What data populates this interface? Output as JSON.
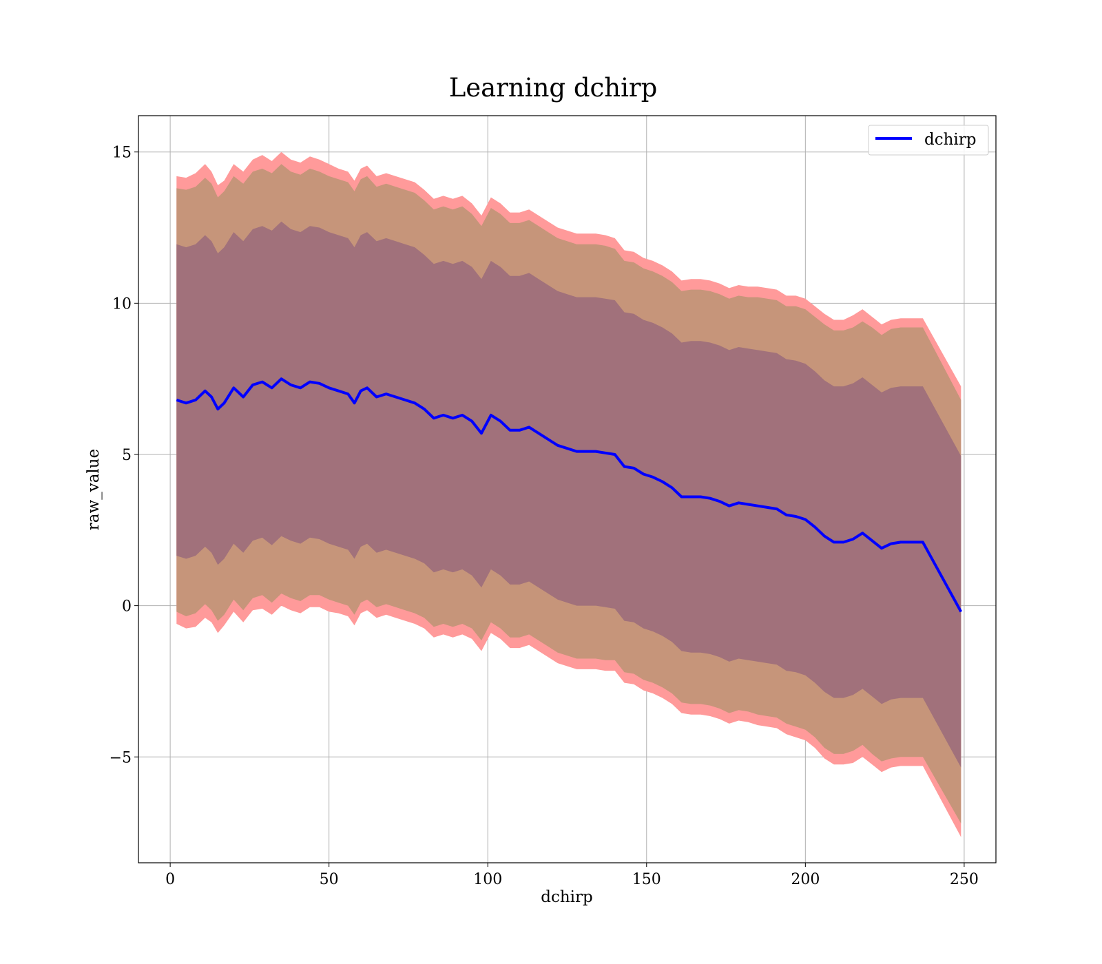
{
  "chart_data": {
    "type": "line",
    "title": "Learning dchirp",
    "xlabel": "dchirp",
    "ylabel": "raw_value",
    "xlim": [
      -10,
      260
    ],
    "ylim": [
      -8.5,
      16.2
    ],
    "x_ticks": [
      0,
      50,
      100,
      150,
      200,
      250
    ],
    "x_tick_labels": [
      "0",
      "50",
      "100",
      "150",
      "200",
      "250"
    ],
    "y_ticks": [
      -5,
      0,
      5,
      10,
      15
    ],
    "y_tick_labels": [
      "−5",
      "0",
      "5",
      "10",
      "15"
    ],
    "grid": true,
    "legend": {
      "position": "top-right",
      "entries": [
        "dchirp"
      ]
    },
    "colors": {
      "line": "#0000ff",
      "band_outer": "#ff9a9a",
      "band_middle": "#c6957a",
      "band_inner": "#a1717b"
    },
    "series": [
      {
        "name": "dchirp",
        "x": [
          2,
          5,
          8,
          11,
          13,
          15,
          17,
          20,
          23,
          26,
          29,
          32,
          35,
          38,
          41,
          44,
          47,
          50,
          53,
          56,
          58,
          60,
          62,
          65,
          68,
          71,
          74,
          77,
          80,
          83,
          86,
          89,
          92,
          95,
          98,
          101,
          104,
          107,
          110,
          113,
          116,
          119,
          122,
          125,
          128,
          131,
          134,
          137,
          140,
          143,
          146,
          149,
          152,
          155,
          158,
          161,
          164,
          167,
          170,
          173,
          176,
          179,
          182,
          185,
          188,
          191,
          194,
          197,
          200,
          203,
          206,
          209,
          212,
          215,
          218,
          221,
          224,
          227,
          230,
          233,
          237,
          249
        ],
        "y": [
          6.8,
          6.7,
          6.8,
          7.1,
          6.9,
          6.5,
          6.7,
          7.2,
          6.9,
          7.3,
          7.4,
          7.2,
          7.5,
          7.3,
          7.2,
          7.4,
          7.35,
          7.2,
          7.1,
          7.0,
          6.7,
          7.1,
          7.2,
          6.9,
          7.0,
          6.9,
          6.8,
          6.7,
          6.5,
          6.2,
          6.3,
          6.2,
          6.3,
          6.1,
          5.7,
          6.3,
          6.1,
          5.8,
          5.8,
          5.9,
          5.7,
          5.5,
          5.3,
          5.2,
          5.1,
          5.1,
          5.1,
          5.05,
          5.0,
          4.6,
          4.55,
          4.35,
          4.25,
          4.1,
          3.9,
          3.6,
          3.6,
          3.6,
          3.55,
          3.45,
          3.3,
          3.4,
          3.35,
          3.3,
          3.25,
          3.2,
          3.0,
          2.95,
          2.85,
          2.6,
          2.3,
          2.1,
          2.1,
          2.2,
          2.4,
          2.15,
          1.9,
          2.05,
          2.1,
          2.1,
          2.1,
          -0.2
        ]
      }
    ],
    "bands": {
      "outer_halfwidth": [
        7.4,
        7.45,
        7.5,
        7.5,
        7.45,
        7.4,
        7.35,
        7.4,
        7.45,
        7.45,
        7.5,
        7.5,
        7.5,
        7.45,
        7.45,
        7.45,
        7.4,
        7.4,
        7.35,
        7.35,
        7.35,
        7.35,
        7.35,
        7.3,
        7.3,
        7.3,
        7.3,
        7.3,
        7.25,
        7.25,
        7.25,
        7.25,
        7.25,
        7.2,
        7.2,
        7.2,
        7.2,
        7.2,
        7.2,
        7.2,
        7.2,
        7.2,
        7.2,
        7.2,
        7.2,
        7.2,
        7.2,
        7.2,
        7.15,
        7.15,
        7.15,
        7.15,
        7.15,
        7.15,
        7.15,
        7.15,
        7.2,
        7.2,
        7.2,
        7.2,
        7.2,
        7.2,
        7.2,
        7.25,
        7.25,
        7.25,
        7.25,
        7.3,
        7.3,
        7.3,
        7.35,
        7.35,
        7.35,
        7.4,
        7.4,
        7.4,
        7.4,
        7.4,
        7.4,
        7.4,
        7.4,
        7.45
      ],
      "middle_halfwidth": [
        7.0,
        7.05,
        7.05,
        7.05,
        7.05,
        7.0,
        7.0,
        7.0,
        7.05,
        7.05,
        7.05,
        7.1,
        7.1,
        7.05,
        7.05,
        7.05,
        7.0,
        7.0,
        7.0,
        7.0,
        7.0,
        7.0,
        7.0,
        6.95,
        6.95,
        6.95,
        6.95,
        6.95,
        6.9,
        6.9,
        6.9,
        6.9,
        6.9,
        6.85,
        6.85,
        6.85,
        6.85,
        6.85,
        6.85,
        6.85,
        6.85,
        6.85,
        6.85,
        6.85,
        6.85,
        6.85,
        6.85,
        6.85,
        6.8,
        6.8,
        6.8,
        6.8,
        6.8,
        6.8,
        6.8,
        6.8,
        6.85,
        6.85,
        6.85,
        6.85,
        6.85,
        6.85,
        6.85,
        6.9,
        6.9,
        6.9,
        6.9,
        6.95,
        6.95,
        6.95,
        7.0,
        7.0,
        7.0,
        7.0,
        7.0,
        7.05,
        7.05,
        7.1,
        7.1,
        7.1,
        7.1,
        7.0
      ],
      "inner_halfwidth": [
        5.15,
        5.15,
        5.15,
        5.15,
        5.15,
        5.15,
        5.15,
        5.15,
        5.15,
        5.15,
        5.15,
        5.2,
        5.2,
        5.15,
        5.15,
        5.15,
        5.15,
        5.15,
        5.15,
        5.15,
        5.15,
        5.15,
        5.15,
        5.15,
        5.15,
        5.15,
        5.15,
        5.15,
        5.1,
        5.1,
        5.1,
        5.1,
        5.1,
        5.1,
        5.1,
        5.1,
        5.1,
        5.1,
        5.1,
        5.1,
        5.1,
        5.1,
        5.1,
        5.1,
        5.1,
        5.1,
        5.1,
        5.1,
        5.1,
        5.1,
        5.1,
        5.1,
        5.1,
        5.1,
        5.1,
        5.1,
        5.15,
        5.15,
        5.15,
        5.15,
        5.15,
        5.15,
        5.15,
        5.15,
        5.15,
        5.15,
        5.15,
        5.15,
        5.15,
        5.15,
        5.15,
        5.15,
        5.15,
        5.15,
        5.15,
        5.15,
        5.15,
        5.15,
        5.15,
        5.15,
        5.15,
        5.15
      ]
    }
  }
}
